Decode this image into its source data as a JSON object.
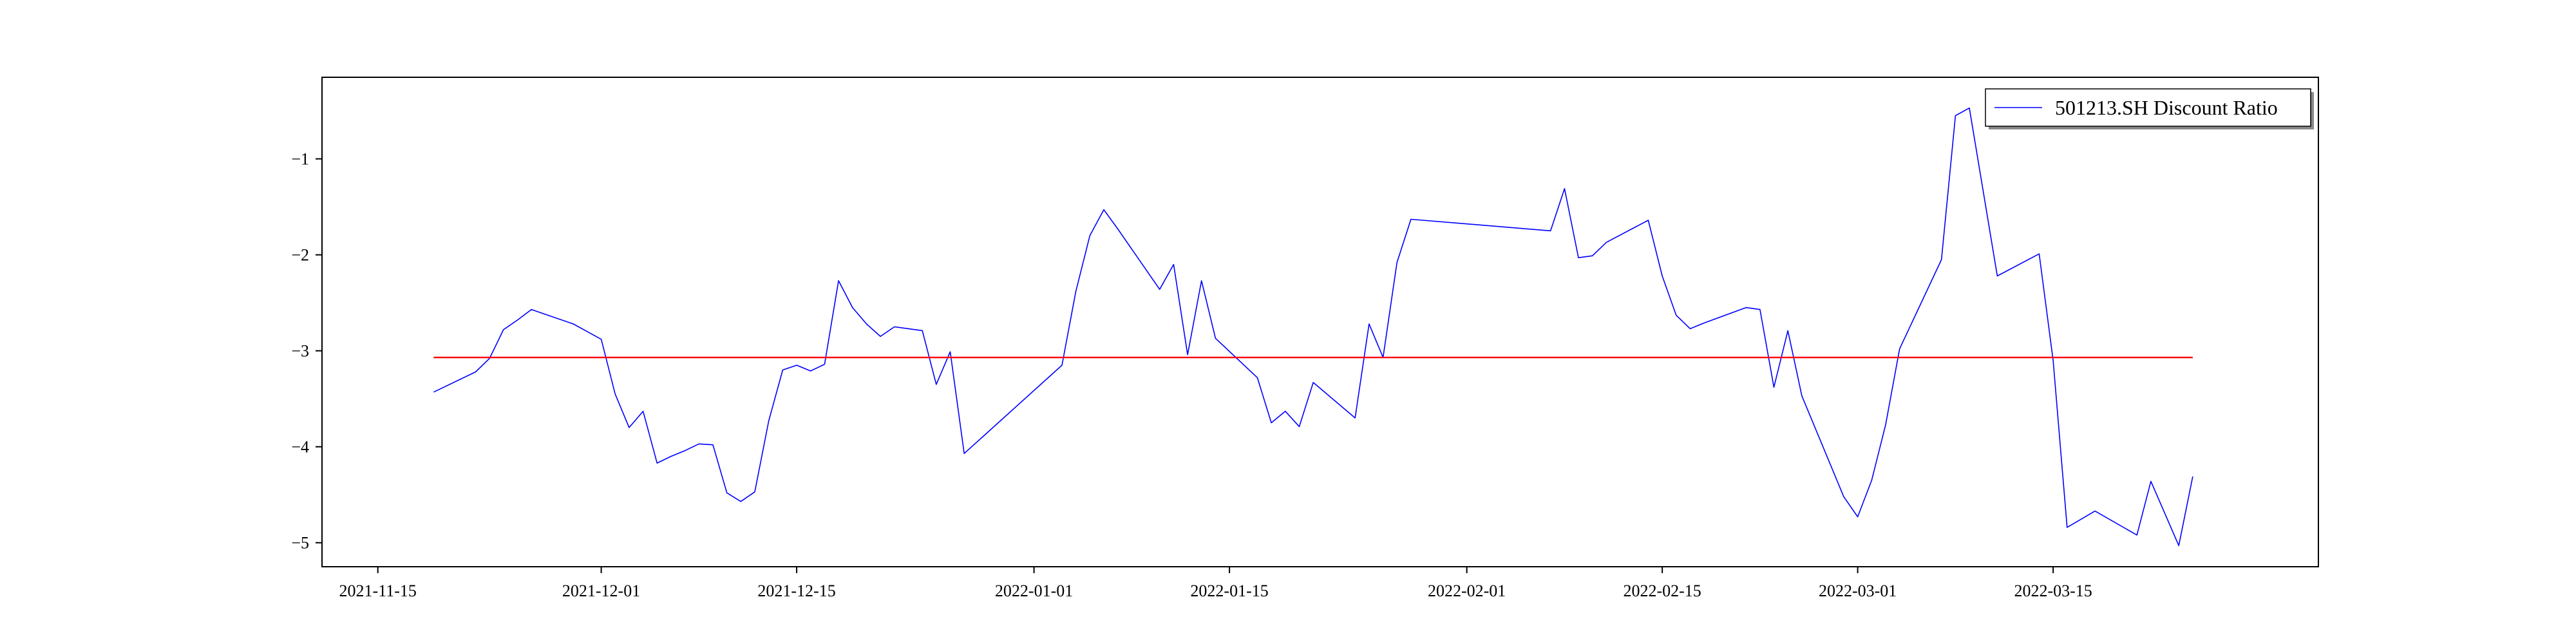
{
  "chart_data": {
    "type": "line",
    "title": "",
    "xlabel": "",
    "ylabel": "",
    "x_tick_labels": [
      "2021-11-15",
      "2021-12-01",
      "2021-12-15",
      "2022-01-01",
      "2022-01-15",
      "2022-02-01",
      "2022-02-15",
      "2022-03-01",
      "2022-03-15"
    ],
    "y_tick_values": [
      -1,
      -2,
      -3,
      -4,
      -5
    ],
    "y_tick_labels": [
      "−1",
      "−2",
      "−3",
      "−4",
      "−5"
    ],
    "xlim": [
      "2021-11-11",
      "2022-04-03"
    ],
    "ylim": [
      -5.25,
      -0.15
    ],
    "grid": false,
    "legend_position": "top-right",
    "series": [
      {
        "name": "501213.SH Discount Ratio",
        "color": "#0000ff",
        "points": [
          [
            "2021-11-19",
            -3.43
          ],
          [
            "2021-11-22",
            -3.22
          ],
          [
            "2021-11-23",
            -3.08
          ],
          [
            "2021-11-24",
            -2.78
          ],
          [
            "2021-11-25",
            -2.68
          ],
          [
            "2021-11-26",
            -2.57
          ],
          [
            "2021-11-29",
            -2.72
          ],
          [
            "2021-11-30",
            -2.8
          ],
          [
            "2021-12-01",
            -2.88
          ],
          [
            "2021-12-02",
            -3.45
          ],
          [
            "2021-12-03",
            -3.8
          ],
          [
            "2021-12-04",
            -3.63
          ],
          [
            "2021-12-05",
            -4.17
          ],
          [
            "2021-12-06",
            -4.1
          ],
          [
            "2021-12-07",
            -4.04
          ],
          [
            "2021-12-08",
            -3.97
          ],
          [
            "2021-12-09",
            -3.98
          ],
          [
            "2021-12-10",
            -4.48
          ],
          [
            "2021-12-11",
            -4.57
          ],
          [
            "2021-12-12",
            -4.47
          ],
          [
            "2021-12-13",
            -3.73
          ],
          [
            "2021-12-14",
            -3.2
          ],
          [
            "2021-12-15",
            -3.15
          ],
          [
            "2021-12-16",
            -3.21
          ],
          [
            "2021-12-17",
            -3.14
          ],
          [
            "2021-12-18",
            -2.27
          ],
          [
            "2021-12-19",
            -2.55
          ],
          [
            "2021-12-20",
            -2.72
          ],
          [
            "2021-12-21",
            -2.85
          ],
          [
            "2021-12-22",
            -2.75
          ],
          [
            "2021-12-23",
            -2.77
          ],
          [
            "2021-12-24",
            -2.79
          ],
          [
            "2021-12-25",
            -3.35
          ],
          [
            "2021-12-26",
            -3.01
          ],
          [
            "2021-12-27",
            -4.07
          ],
          [
            "2022-01-03",
            -3.15
          ],
          [
            "2022-01-04",
            -2.38
          ],
          [
            "2022-01-05",
            -1.8
          ],
          [
            "2022-01-06",
            -1.53
          ],
          [
            "2022-01-07",
            -1.73
          ],
          [
            "2022-01-10",
            -2.36
          ],
          [
            "2022-01-11",
            -2.1
          ],
          [
            "2022-01-12",
            -3.04
          ],
          [
            "2022-01-13",
            -2.27
          ],
          [
            "2022-01-14",
            -2.87
          ],
          [
            "2022-01-17",
            -3.28
          ],
          [
            "2022-01-18",
            -3.75
          ],
          [
            "2022-01-19",
            -3.63
          ],
          [
            "2022-01-20",
            -3.79
          ],
          [
            "2022-01-21",
            -3.33
          ],
          [
            "2022-01-24",
            -3.7
          ],
          [
            "2022-01-25",
            -2.72
          ],
          [
            "2022-01-26",
            -3.07
          ],
          [
            "2022-01-27",
            -2.08
          ],
          [
            "2022-01-28",
            -1.63
          ],
          [
            "2022-02-07",
            -1.75
          ],
          [
            "2022-02-08",
            -1.31
          ],
          [
            "2022-02-09",
            -2.03
          ],
          [
            "2022-02-10",
            -2.01
          ],
          [
            "2022-02-11",
            -1.87
          ],
          [
            "2022-02-14",
            -1.64
          ],
          [
            "2022-02-15",
            -2.22
          ],
          [
            "2022-02-16",
            -2.63
          ],
          [
            "2022-02-17",
            -2.77
          ],
          [
            "2022-02-18",
            -2.71
          ],
          [
            "2022-02-21",
            -2.55
          ],
          [
            "2022-02-22",
            -2.57
          ],
          [
            "2022-02-23",
            -3.38
          ],
          [
            "2022-02-24",
            -2.79
          ],
          [
            "2022-02-25",
            -3.47
          ],
          [
            "2022-02-28",
            -4.52
          ],
          [
            "2022-03-01",
            -4.73
          ],
          [
            "2022-03-02",
            -4.35
          ],
          [
            "2022-03-03",
            -3.77
          ],
          [
            "2022-03-04",
            -2.98
          ],
          [
            "2022-03-07",
            -2.05
          ],
          [
            "2022-03-08",
            -0.55
          ],
          [
            "2022-03-09",
            -0.47
          ],
          [
            "2022-03-11",
            -2.22
          ],
          [
            "2022-03-14",
            -1.99
          ],
          [
            "2022-03-15",
            -3.1
          ],
          [
            "2022-03-16",
            -4.84
          ],
          [
            "2022-03-18",
            -4.67
          ],
          [
            "2022-03-21",
            -4.92
          ],
          [
            "2022-03-22",
            -4.36
          ],
          [
            "2022-03-24",
            -5.03
          ],
          [
            "2022-03-25",
            -4.31
          ]
        ]
      },
      {
        "name": "",
        "color": "#ff0000",
        "points": [
          [
            "2021-11-19",
            -3.07
          ],
          [
            "2022-03-25",
            -3.07
          ]
        ]
      }
    ]
  }
}
